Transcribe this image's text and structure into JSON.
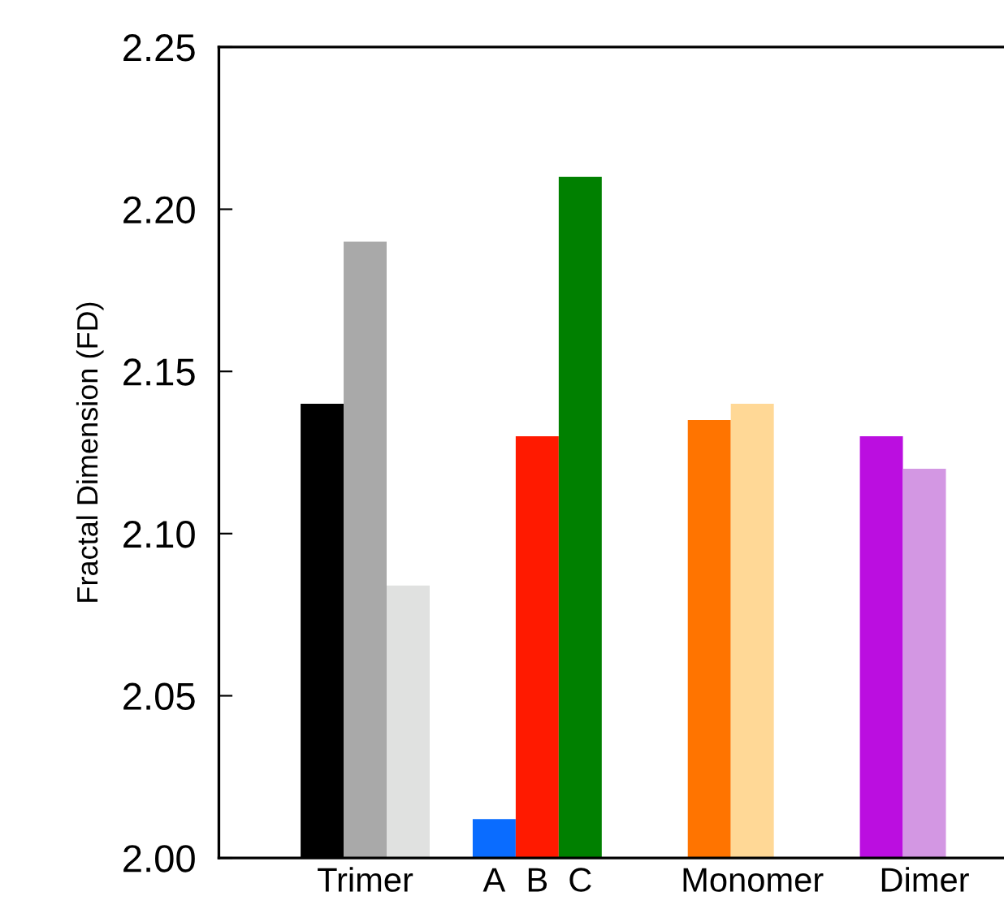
{
  "chart_data": {
    "type": "bar",
    "ylabel": "Fractal Dimension (FD)",
    "categories": [
      null,
      "Trimer",
      null,
      null,
      "A",
      "B",
      "C",
      null,
      null,
      null,
      "Monomer",
      null,
      null,
      null,
      "Dimer"
    ],
    "values": [
      2.14,
      2.19,
      2.084,
      null,
      2.012,
      2.13,
      2.21,
      null,
      null,
      2.135,
      2.14,
      null,
      null,
      2.13,
      2.12
    ],
    "colors": [
      "#000000",
      "#a9a9a9",
      "#e0e1e0",
      null,
      "#0a6cff",
      "#ff1a00",
      "#008000",
      null,
      null,
      "#ff7400",
      "#ffd896",
      null,
      null,
      "#bb0ee0",
      "#d397e3"
    ],
    "ylim": [
      2.0,
      2.25
    ],
    "yticks": [
      {
        "value": 2.0,
        "label": "2.00"
      },
      {
        "value": 2.05,
        "label": "2.05"
      },
      {
        "value": 2.1,
        "label": "2.10"
      },
      {
        "value": 2.15,
        "label": "2.15"
      },
      {
        "value": 2.2,
        "label": "2.20"
      },
      {
        "value": 2.25,
        "label": "2.25"
      }
    ],
    "grid": false,
    "legend": false
  }
}
